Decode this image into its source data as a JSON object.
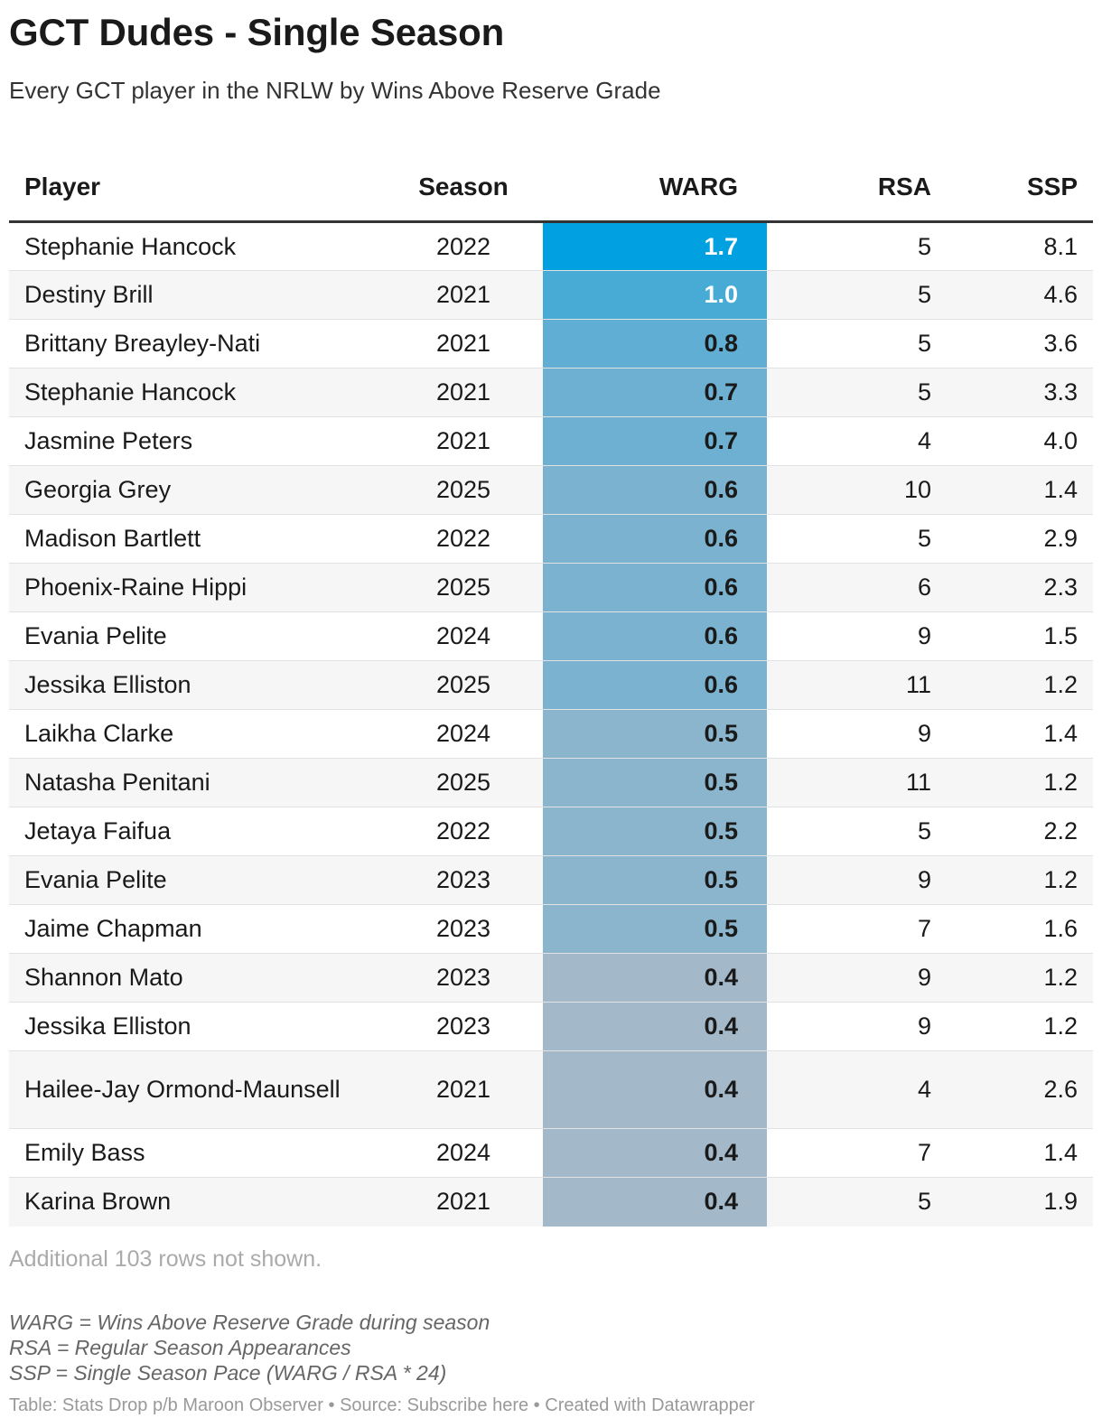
{
  "title": "GCT Dudes - Single Season",
  "subtitle": "Every GCT player in the NRLW by Wins Above Reserve Grade",
  "columns": [
    "Player",
    "Season",
    "WARG",
    "RSA",
    "SSP"
  ],
  "colors": {
    "warg_max": "#00a0e1",
    "warg_min": "#a3b8c9",
    "text_dark": "#1a1a1a",
    "text_light": "#ffffff"
  },
  "chart_data": {
    "type": "table",
    "title": "GCT Dudes - Single Season",
    "columns": [
      "Player",
      "Season",
      "WARG",
      "RSA",
      "SSP"
    ],
    "rows": [
      {
        "player": "Stephanie Hancock",
        "season": "2022",
        "warg": "1.7",
        "rsa": "5",
        "ssp": "8.1"
      },
      {
        "player": "Destiny Brill",
        "season": "2021",
        "warg": "1.0",
        "rsa": "5",
        "ssp": "4.6"
      },
      {
        "player": "Brittany Breayley-Nati",
        "season": "2021",
        "warg": "0.8",
        "rsa": "5",
        "ssp": "3.6"
      },
      {
        "player": "Stephanie Hancock",
        "season": "2021",
        "warg": "0.7",
        "rsa": "5",
        "ssp": "3.3"
      },
      {
        "player": "Jasmine Peters",
        "season": "2021",
        "warg": "0.7",
        "rsa": "4",
        "ssp": "4.0"
      },
      {
        "player": "Georgia Grey",
        "season": "2025",
        "warg": "0.6",
        "rsa": "10",
        "ssp": "1.4"
      },
      {
        "player": "Madison Bartlett",
        "season": "2022",
        "warg": "0.6",
        "rsa": "5",
        "ssp": "2.9"
      },
      {
        "player": "Phoenix-Raine Hippi",
        "season": "2025",
        "warg": "0.6",
        "rsa": "6",
        "ssp": "2.3"
      },
      {
        "player": "Evania Pelite",
        "season": "2024",
        "warg": "0.6",
        "rsa": "9",
        "ssp": "1.5"
      },
      {
        "player": "Jessika Elliston",
        "season": "2025",
        "warg": "0.6",
        "rsa": "11",
        "ssp": "1.2"
      },
      {
        "player": "Laikha Clarke",
        "season": "2024",
        "warg": "0.5",
        "rsa": "9",
        "ssp": "1.4"
      },
      {
        "player": "Natasha Penitani",
        "season": "2025",
        "warg": "0.5",
        "rsa": "11",
        "ssp": "1.2"
      },
      {
        "player": "Jetaya Faifua",
        "season": "2022",
        "warg": "0.5",
        "rsa": "5",
        "ssp": "2.2"
      },
      {
        "player": "Evania Pelite",
        "season": "2023",
        "warg": "0.5",
        "rsa": "9",
        "ssp": "1.2"
      },
      {
        "player": "Jaime Chapman",
        "season": "2023",
        "warg": "0.5",
        "rsa": "7",
        "ssp": "1.6"
      },
      {
        "player": "Shannon Mato",
        "season": "2023",
        "warg": "0.4",
        "rsa": "9",
        "ssp": "1.2"
      },
      {
        "player": "Jessika Elliston",
        "season": "2023",
        "warg": "0.4",
        "rsa": "9",
        "ssp": "1.2"
      },
      {
        "player": "Hailee-Jay Ormond-Maunsell",
        "season": "2021",
        "warg": "0.4",
        "rsa": "4",
        "ssp": "2.6"
      },
      {
        "player": "Emily Bass",
        "season": "2024",
        "warg": "0.4",
        "rsa": "7",
        "ssp": "1.4"
      },
      {
        "player": "Karina Brown",
        "season": "2021",
        "warg": "0.4",
        "rsa": "5",
        "ssp": "1.9"
      }
    ]
  },
  "note": "Additional 103 rows not shown.",
  "legend": [
    "WARG = Wins Above Reserve Grade during season",
    "RSA = Regular Season Appearances",
    "SSP = Single Season Pace (WARG / RSA * 24)"
  ],
  "credit": {
    "table": "Table: Stats Drop p/b Maroon Observer",
    "source": "Source: Subscribe here",
    "created": "Created with Datawrapper",
    "separator": "•"
  }
}
